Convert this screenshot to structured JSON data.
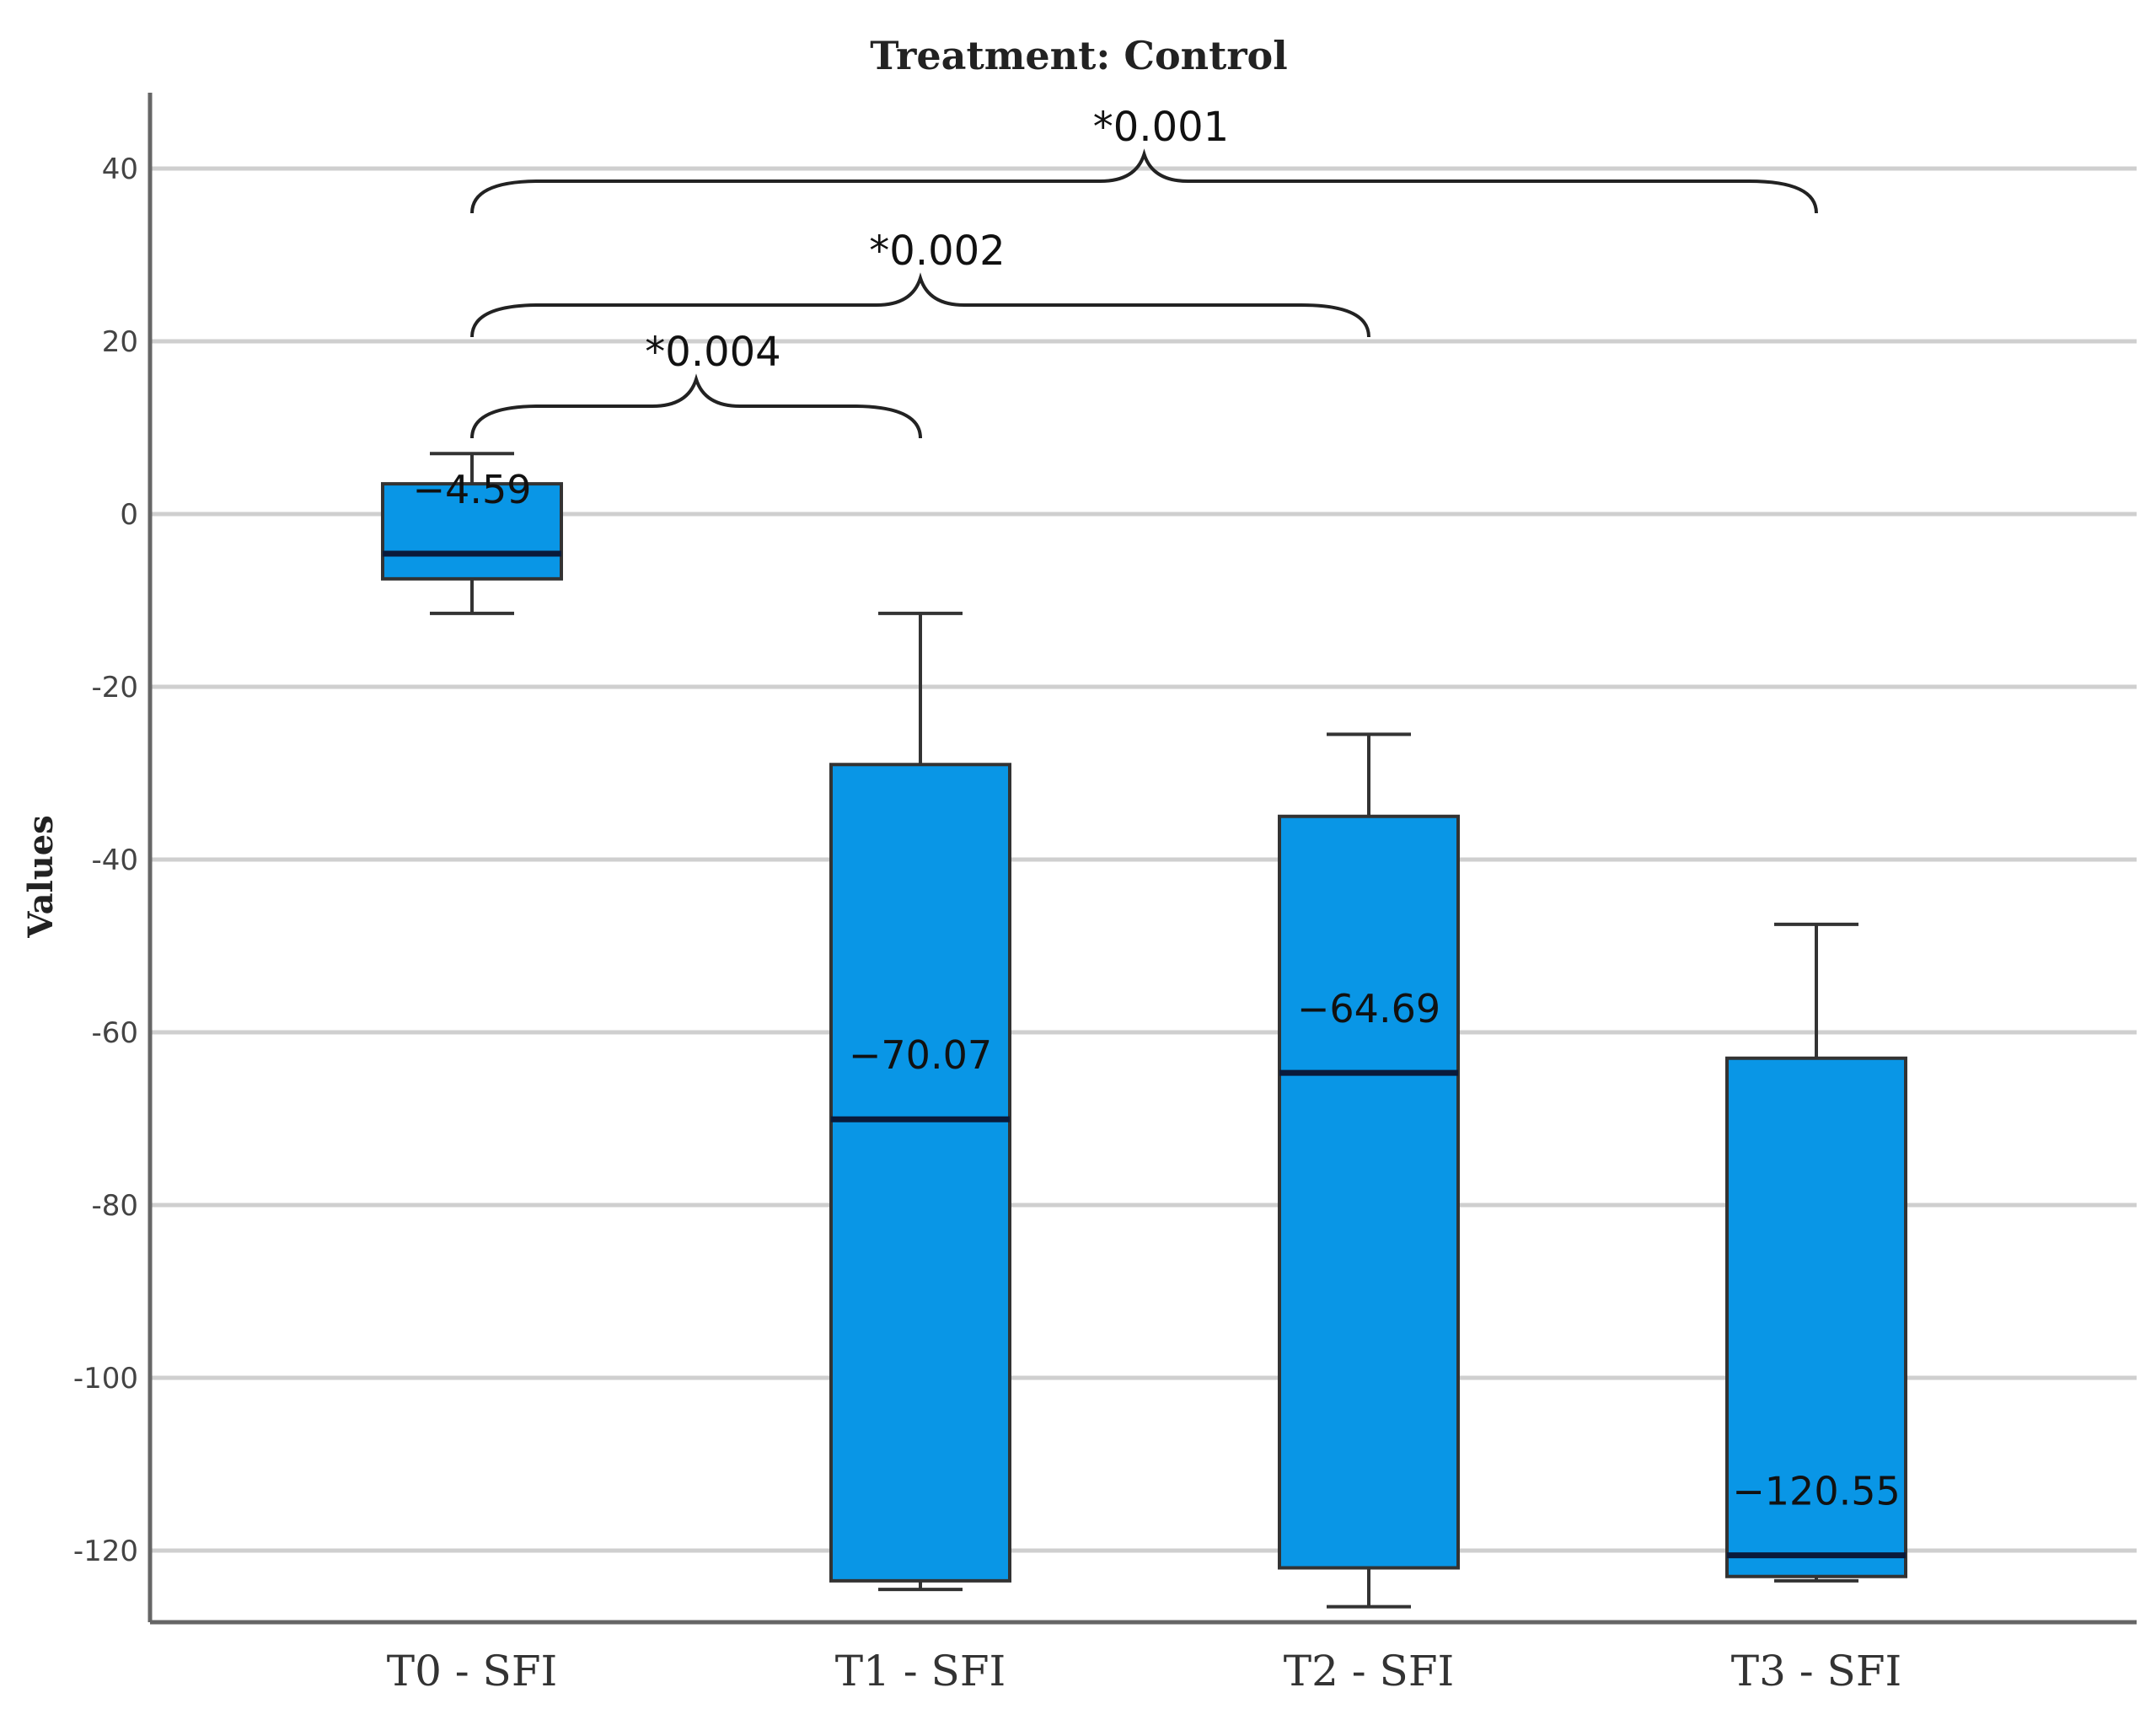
{
  "chart_data": {
    "type": "box",
    "title": "Treatment: Control",
    "ylabel": "Values",
    "xlabel": "",
    "ylim": [
      -129,
      48
    ],
    "yticks": [
      40,
      20,
      0,
      -20,
      -40,
      -60,
      -80,
      -100,
      -120
    ],
    "ytick_labels": [
      "40",
      "20",
      "0",
      "-20",
      "-40",
      "-60",
      "-80",
      "-100",
      "-120"
    ],
    "grid": true,
    "categories": [
      "T0 - SFI",
      "T1 - SFI",
      "T2 - SFI",
      "T3 - SFI"
    ],
    "boxes": [
      {
        "category": "T0 - SFI",
        "whisker_high": 7,
        "q3": 3.5,
        "median": -4.59,
        "q1": -7.5,
        "whisker_low": -11.5,
        "median_label": "−4.59"
      },
      {
        "category": "T1 - SFI",
        "whisker_high": -11.5,
        "q3": -29,
        "median": -70.07,
        "q1": -123.5,
        "whisker_low": -124.5,
        "median_label": "−70.07"
      },
      {
        "category": "T2 - SFI",
        "whisker_high": -25.5,
        "q3": -35,
        "median": -64.69,
        "q1": -122,
        "whisker_low": -126.5,
        "median_label": "−64.69"
      },
      {
        "category": "T3 - SFI",
        "whisker_high": -47.5,
        "q3": -63,
        "median": -120.55,
        "q1": -123,
        "whisker_low": -123.5,
        "median_label": "−120.55"
      }
    ],
    "annotations": [
      {
        "from": "T0 - SFI",
        "to": "T1 - SFI",
        "label": "*0.004"
      },
      {
        "from": "T0 - SFI",
        "to": "T2 - SFI",
        "label": "*0.002"
      },
      {
        "from": "T0 - SFI",
        "to": "T3 - SFI",
        "label": "*0.001"
      }
    ],
    "box_color": "#0996e6",
    "median_color": "#0a1a3a"
  }
}
